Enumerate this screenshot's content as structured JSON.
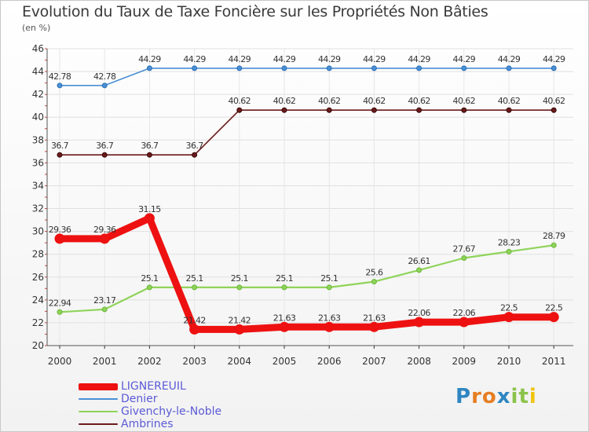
{
  "chart_data": {
    "type": "line",
    "title": "Evolution du Taux de Taxe Foncière sur les Propriétés Non Bâties",
    "subtitle": "(en %)",
    "x": [
      "2000",
      "2001",
      "2002",
      "2003",
      "2004",
      "2005",
      "2006",
      "2007",
      "2008",
      "2009",
      "2010",
      "2011"
    ],
    "ylim": [
      20,
      46
    ],
    "yticks": [
      20,
      22,
      24,
      26,
      28,
      30,
      32,
      34,
      36,
      38,
      40,
      42,
      44,
      46
    ],
    "grid": true,
    "legend_position": "bottom-left",
    "series": [
      {
        "name": "LIGNEREUIL",
        "color": "#ee1111",
        "values": [
          29.36,
          29.36,
          31.15,
          21.42,
          21.42,
          21.63,
          21.63,
          21.63,
          22.06,
          22.06,
          22.5,
          22.5
        ],
        "labels": [
          "29.36",
          "29.36",
          "31.15",
          "21.42",
          "21.42",
          "21.63",
          "21.63",
          "21.63",
          "22.06",
          "22.06",
          "22.5",
          "22.5"
        ]
      },
      {
        "name": "Denier",
        "color": "#4a8fd4",
        "values": [
          42.78,
          42.78,
          44.29,
          44.29,
          44.29,
          44.29,
          44.29,
          44.29,
          44.29,
          44.29,
          44.29,
          44.29
        ],
        "labels": [
          "42.78",
          "42.78",
          "44.29",
          "44.29",
          "44.29",
          "44.29",
          "44.29",
          "44.29",
          "44.29",
          "44.29",
          "44.29",
          "44.29"
        ]
      },
      {
        "name": "Givenchy-le-Noble",
        "color": "#8fd45a",
        "values": [
          22.94,
          23.17,
          25.1,
          25.1,
          25.1,
          25.1,
          25.1,
          25.6,
          26.61,
          27.67,
          28.23,
          28.79
        ],
        "labels": [
          "22.94",
          "23.17",
          "25.1",
          "25.1",
          "25.1",
          "25.1",
          "25.1",
          "25.6",
          "26.61",
          "27.67",
          "28.23",
          "28.79"
        ]
      },
      {
        "name": "Ambrines",
        "color": "#6b1a1a",
        "values": [
          36.7,
          36.7,
          36.7,
          36.7,
          40.62,
          40.62,
          40.62,
          40.62,
          40.62,
          40.62,
          40.62,
          40.62
        ],
        "labels": [
          "36.7",
          "36.7",
          "36.7",
          "36.7",
          "40.62",
          "40.62",
          "40.62",
          "40.62",
          "40.62",
          "40.62",
          "40.62",
          "40.62"
        ]
      }
    ]
  },
  "legend": [
    {
      "label": "LIGNEREUIL",
      "color": "#ee1111"
    },
    {
      "label": "Denier",
      "color": "#4a8fd4"
    },
    {
      "label": "Givenchy-le-Noble",
      "color": "#8fd45a"
    },
    {
      "label": "Ambrines",
      "color": "#6b1a1a"
    }
  ],
  "logo": {
    "text": "Proxiti",
    "letters": [
      "P",
      "r",
      "o",
      "x",
      "i",
      "t",
      "i"
    ],
    "colors": [
      "#2e86c1",
      "#e67e22",
      "#e67e22",
      "#2e86c1",
      "#8bc34a",
      "#8bc34a",
      "#f1c40f"
    ]
  }
}
